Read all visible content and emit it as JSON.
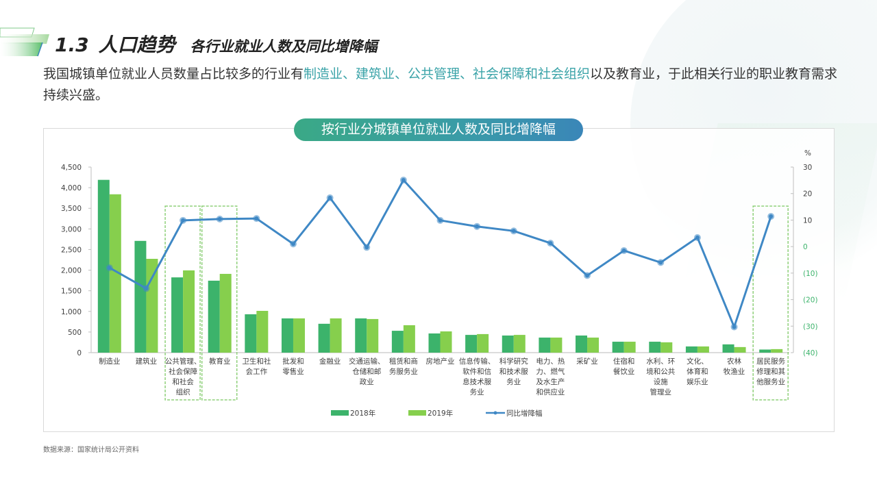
{
  "header": {
    "section_number": "1.3",
    "section_title": "人口趋势",
    "subtitle": "各行业就业人数及同比增降幅"
  },
  "intro": {
    "text_before": "我国城镇单位就业人员数量占比较多的行业有",
    "highlight": "制造业、建筑业、公共管理、社会保障和社会组织",
    "text_after": "以及教育业，于此相关行业的职业教育需求持续兴盛。"
  },
  "colors": {
    "bar_2018": "#3cb36b",
    "bar_2019": "#86cf4d",
    "line": "#3f88c5",
    "highlight_text": "#3aa3a8",
    "negative_tick": "#3cb36b",
    "highlight_box": "#8fd07a"
  },
  "source": "数据来源：国家统计局公开资料",
  "chart_data": {
    "type": "bar+line",
    "title": "按行业分城镇单位就业人数及同比增降幅",
    "categories": [
      "制造业",
      "建筑业",
      "公共管理、社会保障和社会组织",
      "教育业",
      "卫生和社会工作",
      "批发和零售业",
      "金融业",
      "交通运输、仓储和邮政业",
      "租赁和商务服务业",
      "房地产业",
      "信息传输、软件和信息技术服务业",
      "科学研究和技术服务业",
      "电力、热力、燃气及水生产和供应业",
      "采矿业",
      "住宿和餐饮业",
      "水利、环境和公共设施管理业",
      "文化、体育和娱乐业",
      "农林牧渔业",
      "居民服务修理和其他服务业"
    ],
    "category_label_lines": [
      [
        "制造业"
      ],
      [
        "建筑业"
      ],
      [
        "公共管理、",
        "社会保障",
        "和社会",
        "组织"
      ],
      [
        "教育业"
      ],
      [
        "卫生和社",
        "会工作"
      ],
      [
        "批发和",
        "零售业"
      ],
      [
        "金融业"
      ],
      [
        "交通运输、",
        "仓储和邮",
        "政业"
      ],
      [
        "租赁和商",
        "务服务业"
      ],
      [
        "房地产业"
      ],
      [
        "信息传输、",
        "软件和信",
        "息技术服",
        "务业"
      ],
      [
        "科学研究",
        "和技术服",
        "务业"
      ],
      [
        "电力、热",
        "力、燃气",
        "及水生产",
        "和供应业"
      ],
      [
        "采矿业"
      ],
      [
        "住宿和",
        "餐饮业"
      ],
      [
        "水利、环",
        "境和公共",
        "设施",
        "管理业"
      ],
      [
        "文化、",
        "体育和",
        "娱乐业"
      ],
      [
        "农林",
        "牧渔业"
      ],
      [
        "居民服务",
        "修理和其",
        "他服务业"
      ]
    ],
    "series": [
      {
        "name": "2018年",
        "type": "bar",
        "axis": "left",
        "values": [
          4190,
          2710,
          1825,
          1745,
          930,
          830,
          700,
          830,
          530,
          465,
          430,
          415,
          365,
          415,
          265,
          265,
          150,
          200,
          75
        ]
      },
      {
        "name": "2019年",
        "type": "bar",
        "axis": "left",
        "values": [
          3840,
          2275,
          1995,
          1910,
          1013,
          830,
          830,
          815,
          665,
          515,
          450,
          430,
          365,
          365,
          265,
          250,
          150,
          135,
          85
        ]
      },
      {
        "name": "同比增降幅",
        "type": "line",
        "axis": "right",
        "values": [
          -8.0,
          -15.8,
          9.9,
          10.4,
          10.6,
          1.0,
          18.4,
          -0.3,
          25.1,
          9.9,
          7.6,
          5.9,
          1.3,
          -10.9,
          -1.5,
          -6.0,
          3.4,
          -30.3,
          11.4
        ]
      }
    ],
    "left_axis": {
      "ylim": [
        0,
        4500
      ],
      "ticks": [
        0,
        500,
        1000,
        1500,
        2000,
        2500,
        3000,
        3500,
        4000,
        4500
      ],
      "tick_labels": [
        "0",
        "500",
        "1,000",
        "1,500",
        "2,000",
        "2,500",
        "3,000",
        "3,500",
        "4,000",
        "4,500"
      ]
    },
    "right_axis": {
      "unit": "%",
      "ylim": [
        -40,
        30
      ],
      "ticks": [
        30,
        20,
        10,
        0,
        -10,
        -20,
        -30,
        -40
      ],
      "tick_labels": [
        "30",
        "20",
        "10",
        "0",
        "(10)",
        "(20)",
        "(30)",
        "(40)"
      ]
    },
    "highlighted_categories": [
      2,
      3,
      18
    ],
    "legend": [
      "2018年",
      "2019年",
      "同比增降幅"
    ],
    "legend_position": "bottom",
    "grid": false,
    "xlabel": "",
    "ylabel": ""
  }
}
